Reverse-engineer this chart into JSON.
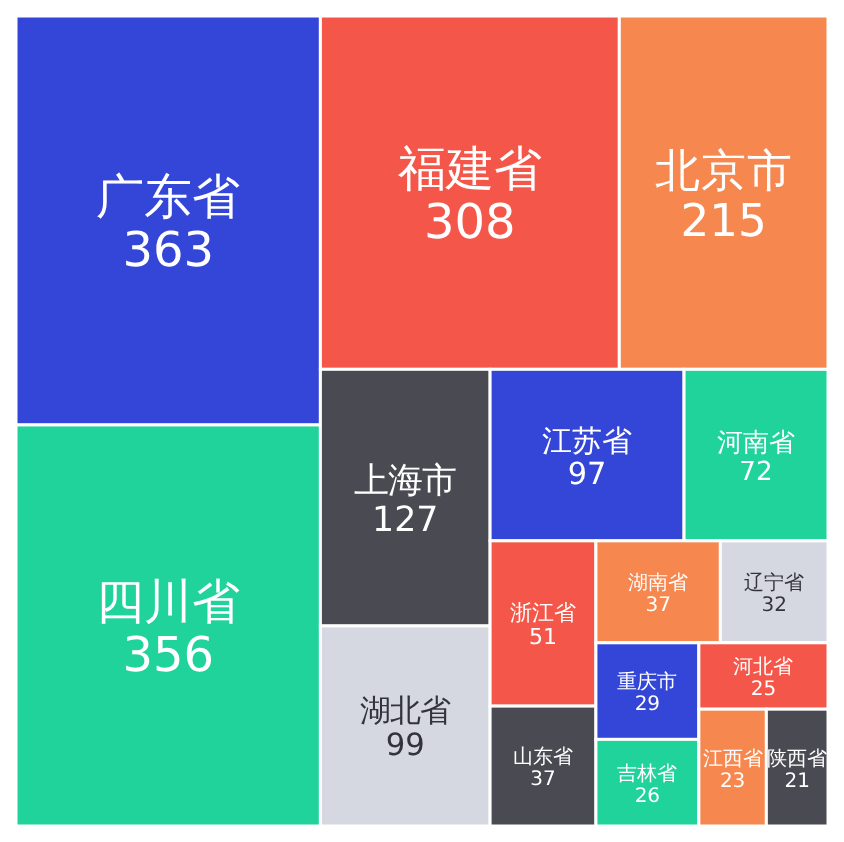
{
  "chart_data": {
    "type": "other",
    "data_labels": true,
    "categories": [
      "广东省",
      "四川省",
      "福建省",
      "北京市",
      "上海市",
      "湖北省",
      "江苏省",
      "河南省",
      "浙江省",
      "山东省",
      "湖南省",
      "辽宁省",
      "重庆市",
      "吉林省",
      "河北省",
      "江西省",
      "陕西省"
    ],
    "values": [
      363,
      356,
      308,
      215,
      127,
      99,
      97,
      72,
      51,
      37,
      37,
      32,
      29,
      26,
      25,
      23,
      21
    ],
    "colors": [
      "#3346d8",
      "#1fd39a",
      "#f4574a",
      "#f5874f",
      "#4a4a52",
      "#d5d8e0",
      "#3346d8",
      "#1fd39a",
      "#f4574a",
      "#4a4a52",
      "#f5874f",
      "#d5d8e0",
      "#3346d8",
      "#1fd39a",
      "#f4574a",
      "#f5874f",
      "#4a4a52"
    ]
  }
}
